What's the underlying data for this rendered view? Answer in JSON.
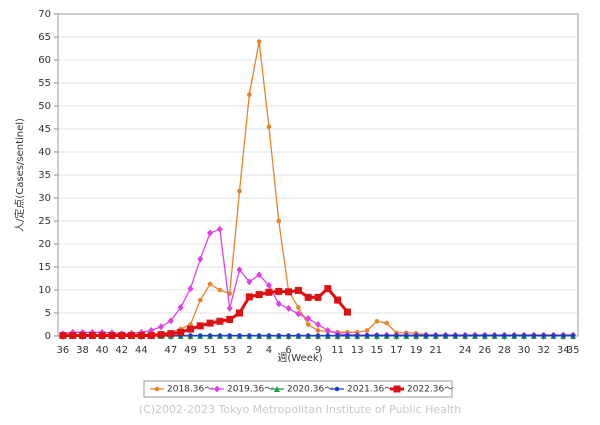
{
  "chart_data": {
    "type": "line",
    "x_label": "週(Week)",
    "y_label": "人/定点(Cases/sentinel)",
    "credit": "(C)2002-2023 Tokyo Metropolitan Institute of Public Health",
    "categories": [
      "36",
      null,
      "38",
      null,
      "40",
      null,
      "42",
      null,
      "44",
      null,
      null,
      "47",
      null,
      "49",
      null,
      "51",
      null,
      "53",
      null,
      "2",
      null,
      "4",
      null,
      "6",
      null,
      null,
      "9",
      null,
      "11",
      null,
      "13",
      null,
      "15",
      null,
      "17",
      null,
      "19",
      null,
      "21",
      null,
      null,
      "24",
      null,
      "26",
      null,
      "28",
      null,
      "30",
      null,
      "32",
      null,
      "34",
      "35"
    ],
    "ylim": [
      0,
      70
    ],
    "yticks": [
      0,
      5,
      10,
      15,
      20,
      25,
      30,
      35,
      40,
      45,
      50,
      55,
      60,
      65,
      70
    ],
    "grid": true,
    "legend": "bottom",
    "series": [
      {
        "name": "2018.36～",
        "color": "#e8832a",
        "marker": "circle",
        "values": [
          0.3,
          0.3,
          0.3,
          0.3,
          0.3,
          0.3,
          0.3,
          0.3,
          0.3,
          0.4,
          0.5,
          0.8,
          1.5,
          2.5,
          7.8,
          11.3,
          10,
          9.2,
          31.5,
          52.5,
          64,
          45.5,
          25,
          9.8,
          6.2,
          2.5,
          1.2,
          1,
          0.8,
          0.8,
          0.8,
          1.2,
          3.2,
          2.8,
          0.7,
          0.7,
          0.6,
          0.3,
          0.2,
          0.2,
          0.2,
          0.2,
          0.2,
          0.2,
          0.2,
          0.2,
          0.2,
          0.2,
          0.2,
          0.2,
          0.2,
          0.2,
          0.2
        ]
      },
      {
        "name": "2019.36～",
        "color": "#e040e8",
        "marker": "diamond",
        "values": [
          0.5,
          0.8,
          0.8,
          0.8,
          0.8,
          0.7,
          0.5,
          0.6,
          0.8,
          1.2,
          2,
          3.3,
          6.2,
          10.3,
          16.7,
          22.4,
          23.2,
          6,
          14.4,
          11.8,
          13.3,
          11,
          7,
          6,
          4.8,
          3.8,
          2.5,
          1.2,
          0.5,
          0.3,
          0.2,
          0.2,
          0.2,
          0.2,
          0.2,
          0.2,
          0.2,
          0.2,
          0.2,
          0.2,
          0.2,
          0.2,
          0.2,
          0.2,
          0.2,
          0.2,
          0.2,
          0.2,
          0.2,
          0.2,
          0.2,
          0.2,
          0.2
        ]
      },
      {
        "name": "2020.36～",
        "color": "#22a04a",
        "marker": "triangle",
        "values": [
          0,
          0,
          0,
          0,
          0,
          0,
          0,
          0,
          0,
          0,
          0,
          0,
          0,
          0,
          0,
          0,
          0,
          0,
          0,
          0,
          0,
          0,
          0,
          0,
          0,
          0,
          0,
          0,
          0,
          0,
          0,
          0,
          0,
          0,
          0,
          0,
          0,
          0,
          0,
          0,
          0,
          0,
          0,
          0,
          0,
          0,
          0,
          0,
          0,
          0,
          0,
          0,
          0
        ]
      },
      {
        "name": "2021.36～",
        "color": "#1f3fbf",
        "marker": "circle",
        "values": [
          0.1,
          0.1,
          0.1,
          0.1,
          0.1,
          0.1,
          0.1,
          0.1,
          0.1,
          0.1,
          0.1,
          0.1,
          0.1,
          0.1,
          0.1,
          0.1,
          0.1,
          0.1,
          0.1,
          0.1,
          0.1,
          0.1,
          0.1,
          0.1,
          0.1,
          0.1,
          0.1,
          0.1,
          0.1,
          0.1,
          0.1,
          0.1,
          0.1,
          0.1,
          0.1,
          0.1,
          0.1,
          0.1,
          0.1,
          0.1,
          0.1,
          0.1,
          0.1,
          0.1,
          0.1,
          0.1,
          0.1,
          0.1,
          0.1,
          0.1,
          0.1,
          0.1,
          0.1
        ]
      },
      {
        "name": "2022.36～",
        "color": "#dd1111",
        "marker": "square",
        "width": 3,
        "values": [
          0.1,
          0.1,
          0.1,
          0.1,
          0.1,
          0.1,
          0.1,
          0.1,
          0.1,
          0.1,
          0.3,
          0.5,
          0.8,
          1.5,
          2.2,
          2.8,
          3.2,
          3.6,
          5,
          8.5,
          9,
          9.5,
          9.7,
          9.6,
          9.9,
          8.4,
          8.4,
          10.3,
          7.8,
          5.2,
          null,
          null,
          null,
          null,
          null,
          null,
          null,
          null,
          null,
          null,
          null,
          null,
          null,
          null,
          null,
          null,
          null,
          null,
          null,
          null,
          null,
          null,
          null
        ]
      }
    ]
  }
}
